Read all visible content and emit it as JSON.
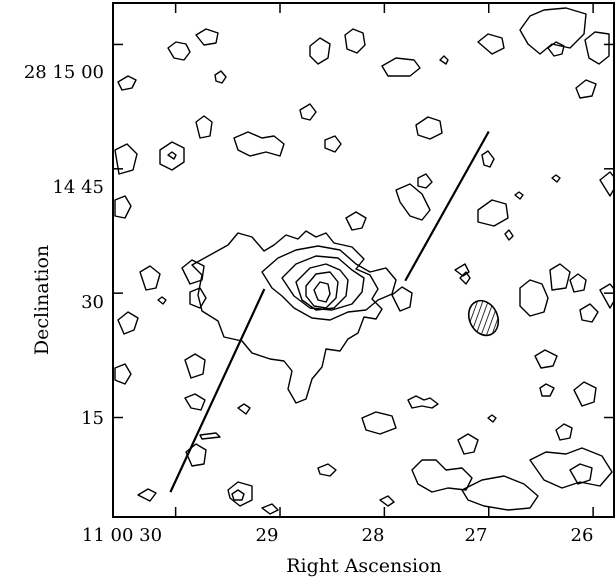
{
  "chart_data": {
    "type": "contour",
    "title": "",
    "xlabel": "Right Ascension",
    "ylabel": "Declination",
    "x_ticks": [
      {
        "label": "11 00 30",
        "value": 30
      },
      {
        "label": "29",
        "value": 29
      },
      {
        "label": "28",
        "value": 28
      },
      {
        "label": "27",
        "value": 27
      },
      {
        "label": "26",
        "value": 26
      }
    ],
    "y_ticks": [
      {
        "label": "28 15 00",
        "value": 60
      },
      {
        "label": "14 45",
        "value": 45
      },
      {
        "label": "30",
        "value": 30
      },
      {
        "label": "15",
        "value": 15
      }
    ],
    "xlim": [
      30.6,
      25.8
    ],
    "ylim": [
      3.0,
      65.0
    ],
    "x_units": "seconds of RA past 11h00m",
    "y_units": "arcsec past +28d14m",
    "grid": false,
    "main_source": {
      "ra": 28.55,
      "dec": 31.5,
      "contour_levels_drawn": 6
    },
    "slit_lines": [
      {
        "from": {
          "ra": 30.05,
          "dec": 6.0
        },
        "to": {
          "ra": 29.15,
          "dec": 30.5
        }
      },
      {
        "from": {
          "ra": 27.8,
          "dec": 31.5
        },
        "to": {
          "ra": 27.0,
          "dec": 49.5
        }
      }
    ],
    "beam": {
      "ra": 27.05,
      "dec": 27.0,
      "hatched": true
    }
  }
}
